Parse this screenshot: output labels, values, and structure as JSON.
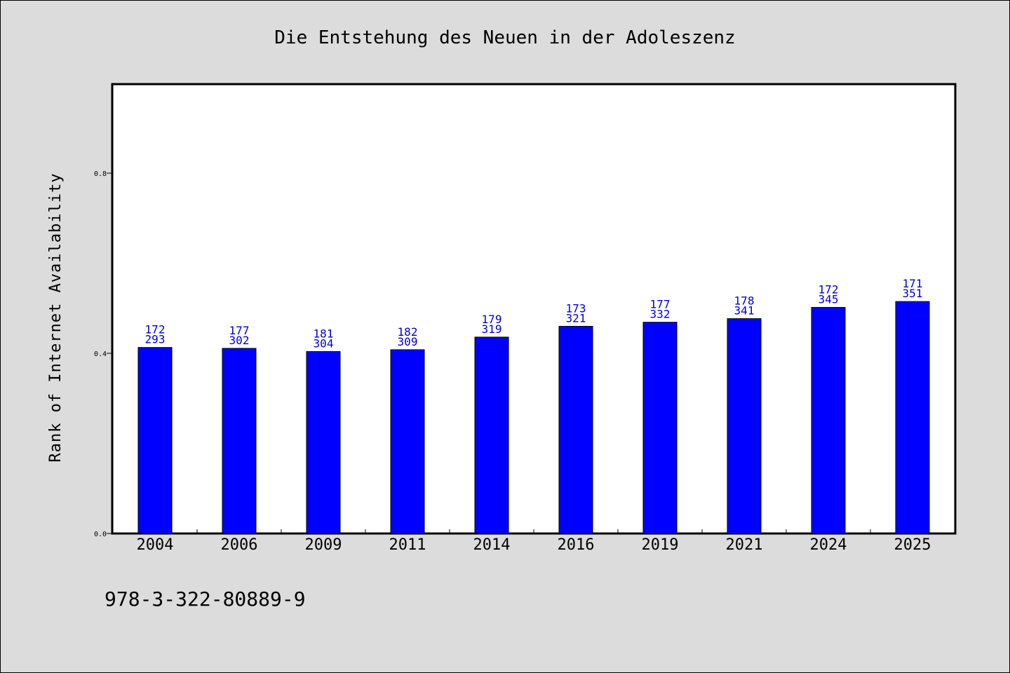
{
  "chart_data": {
    "type": "bar",
    "title": "Die Entstehung des Neuen in der Adoleszenz",
    "ylabel": "Rank of Internet Availability",
    "xlabel": "",
    "ylim": [
      0,
      1.0
    ],
    "yticks": [
      0.0,
      0.4,
      0.8
    ],
    "ytick_labels": [
      "0.0",
      "0.4",
      "0.8"
    ],
    "grid": false,
    "categories": [
      "2004",
      "2006",
      "2009",
      "2011",
      "2014",
      "2016",
      "2019",
      "2021",
      "2024",
      "2025"
    ],
    "values": [
      0.413,
      0.411,
      0.404,
      0.408,
      0.436,
      0.46,
      0.469,
      0.477,
      0.502,
      0.515
    ],
    "annotations": [
      {
        "top": "172",
        "bottom": "293"
      },
      {
        "top": "177",
        "bottom": "302"
      },
      {
        "top": "181",
        "bottom": "304"
      },
      {
        "top": "182",
        "bottom": "309"
      },
      {
        "top": "179",
        "bottom": "319"
      },
      {
        "top": "173",
        "bottom": "321"
      },
      {
        "top": "177",
        "bottom": "332"
      },
      {
        "top": "178",
        "bottom": "341"
      },
      {
        "top": "172",
        "bottom": "345"
      },
      {
        "top": "171",
        "bottom": "351"
      }
    ],
    "bar_color": "#0000ff",
    "annotation_color": "#0000cc"
  },
  "footer": {
    "isbn": "978-3-322-80889-9"
  }
}
